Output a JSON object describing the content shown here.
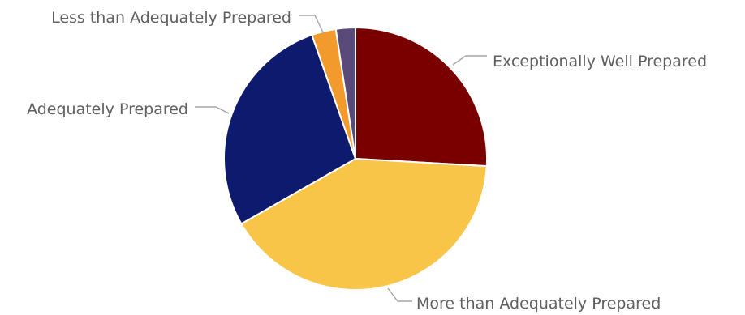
{
  "chart_data": {
    "type": "pie",
    "title": "",
    "slices": [
      {
        "label": "Exceptionally Well Prepared",
        "value": 26,
        "color": "#7a0000"
      },
      {
        "label": "More than Adequately Prepared",
        "value": 41,
        "color": "#f9c548"
      },
      {
        "label": "Adequately Prepared",
        "value": 28,
        "color": "#0d1a6e"
      },
      {
        "label": "Less than Adequately Prepared",
        "value": 3,
        "color": "#f39a2d"
      },
      {
        "label": "",
        "value": 2.4,
        "color": "#5a4a7a"
      }
    ],
    "start_angle": "12 o'clock",
    "direction": "clockwise",
    "legend": "none",
    "label_position": "outside with leader lines"
  }
}
